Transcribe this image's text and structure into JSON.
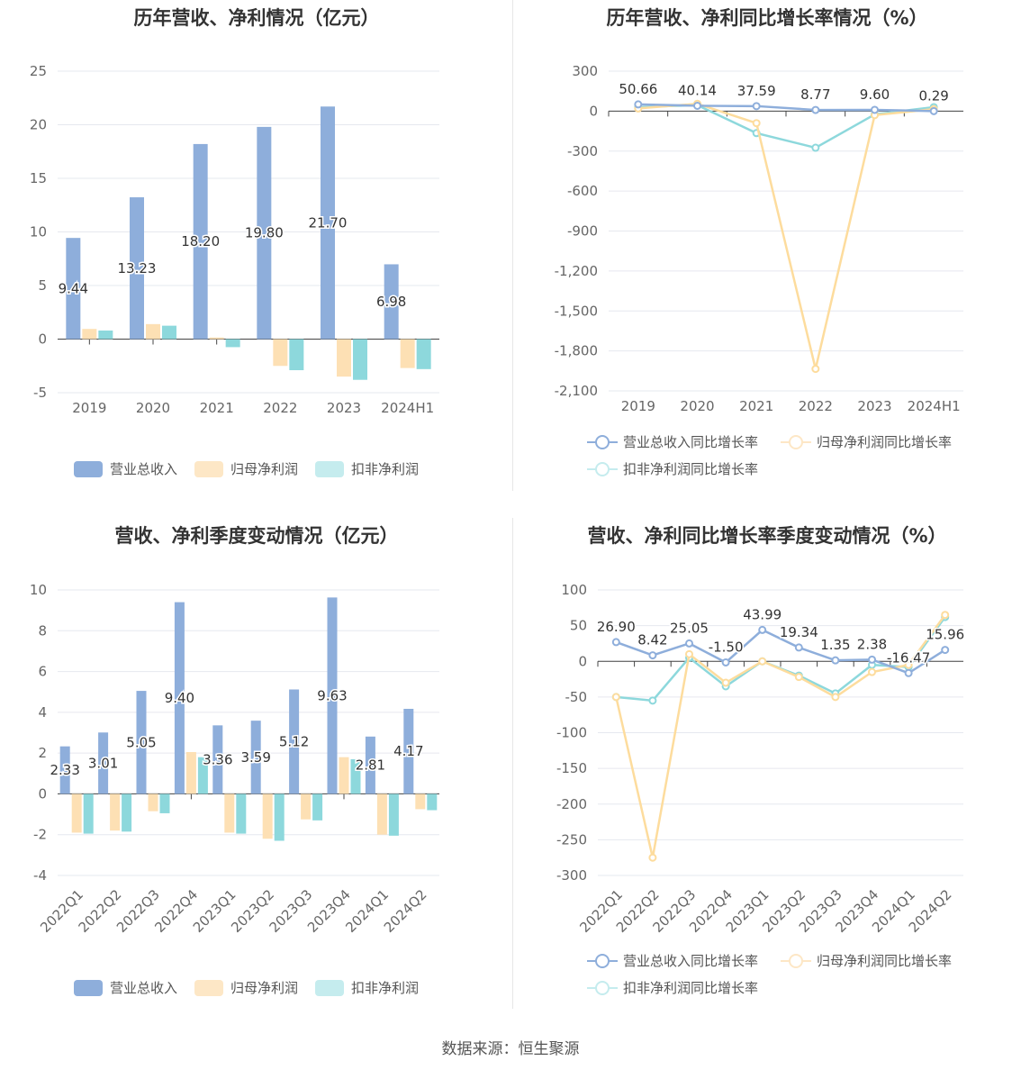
{
  "source": "数据来源：恒生聚源",
  "colors": {
    "revenue": "#8eaedb",
    "netprofit": "#fde0b4",
    "deducted": "#8dd8dc",
    "revenue_line": "#8eaedb",
    "netprofit_line": "#fddc9d",
    "deducted_line": "#8dd8dc",
    "legend_deducted": "#c5ecee",
    "legend_netprofit": "#fde7c6"
  },
  "chart_data": [
    {
      "type": "bar",
      "title": "历年营收、净利情况（亿元）",
      "categories": [
        "2019",
        "2020",
        "2021",
        "2022",
        "2023",
        "2024H1"
      ],
      "ylim": [
        -5,
        25
      ],
      "yticks": [
        -5,
        0,
        5,
        10,
        15,
        20,
        25
      ],
      "series": [
        {
          "name": "营业总收入",
          "values": [
            9.44,
            13.23,
            18.2,
            19.8,
            21.7,
            6.98
          ],
          "labels": [
            "9.44",
            "13.23",
            "18.20",
            "19.80",
            "21.70",
            "6.98"
          ]
        },
        {
          "name": "归母净利润",
          "values": [
            0.95,
            1.4,
            0.15,
            -2.5,
            -3.5,
            -2.7
          ]
        },
        {
          "name": "扣非净利润",
          "values": [
            0.8,
            1.25,
            -0.75,
            -2.9,
            -3.8,
            -2.8
          ]
        }
      ],
      "legend": "bottom",
      "grid": true
    },
    {
      "type": "line",
      "title": "历年营收、净利同比增长率情况（%）",
      "categories": [
        "2019",
        "2020",
        "2021",
        "2022",
        "2023",
        "2024H1"
      ],
      "ylim": [
        -2100,
        300
      ],
      "yticks": [
        300,
        0,
        -300,
        -600,
        -900,
        -1200,
        -1500,
        -1800,
        -2100
      ],
      "ytick_labels": [
        "300",
        "0",
        "-300",
        "-600",
        "-900",
        "-1,200",
        "-1,500",
        "-1,800",
        "-2,100"
      ],
      "series": [
        {
          "name": "营业总收入同比增长率",
          "values": [
            50.66,
            40.14,
            37.59,
            8.77,
            9.6,
            0.29
          ],
          "labels": [
            "50.66",
            "40.14",
            "37.59",
            "8.77",
            "9.60",
            "0.29"
          ]
        },
        {
          "name": "归母净利润同比增长率",
          "values": [
            20,
            55,
            -90,
            -1935,
            -30,
            15
          ]
        },
        {
          "name": "扣非净利润同比增长率",
          "values": [
            30,
            45,
            -165,
            -275,
            -25,
            30
          ]
        }
      ],
      "legend": "bottom",
      "grid": true
    },
    {
      "type": "bar",
      "title": "营收、净利季度变动情况（亿元）",
      "categories": [
        "2022Q1",
        "2022Q2",
        "2022Q3",
        "2022Q4",
        "2023Q1",
        "2023Q2",
        "2023Q3",
        "2023Q4",
        "2024Q1",
        "2024Q2"
      ],
      "ylim": [
        -4,
        10
      ],
      "yticks": [
        -4,
        -2,
        0,
        2,
        4,
        6,
        8,
        10
      ],
      "series": [
        {
          "name": "营业总收入",
          "values": [
            2.33,
            3.01,
            5.05,
            9.4,
            3.36,
            3.59,
            5.12,
            9.63,
            2.81,
            4.17
          ],
          "labels": [
            "2.33",
            "3.01",
            "5.05",
            "9.40",
            "3.36",
            "3.59",
            "5.12",
            "9.63",
            "2.81",
            "4.17"
          ]
        },
        {
          "name": "归母净利润",
          "values": [
            -1.9,
            -1.8,
            -0.85,
            2.05,
            -1.9,
            -2.2,
            -1.25,
            1.8,
            -2.0,
            -0.75
          ]
        },
        {
          "name": "扣非净利润",
          "values": [
            -1.95,
            -1.85,
            -0.95,
            1.8,
            -1.95,
            -2.3,
            -1.3,
            1.7,
            -2.05,
            -0.8
          ]
        }
      ],
      "legend": "bottom",
      "grid": true
    },
    {
      "type": "line",
      "title": "营收、净利同比增长率季度变动情况（%）",
      "categories": [
        "2022Q1",
        "2022Q2",
        "2022Q3",
        "2022Q4",
        "2023Q1",
        "2023Q2",
        "2023Q3",
        "2023Q4",
        "2024Q1",
        "2024Q2"
      ],
      "ylim": [
        -300,
        100
      ],
      "yticks": [
        100,
        50,
        0,
        -50,
        -100,
        -150,
        -200,
        -250,
        -300
      ],
      "series": [
        {
          "name": "营业总收入同比增长率",
          "values": [
            26.9,
            8.42,
            25.05,
            -1.5,
            43.99,
            19.34,
            1.35,
            2.38,
            -16.47,
            15.96
          ],
          "labels": [
            "26.90",
            "8.42",
            "25.05",
            "-1.50",
            "43.99",
            "19.34",
            "1.35",
            "2.38",
            "-16.47",
            "15.96"
          ]
        },
        {
          "name": "归母净利润同比增长率",
          "values": [
            -50,
            -275,
            10,
            -30,
            0,
            -22,
            -50,
            -15,
            -5,
            65
          ]
        },
        {
          "name": "扣非净利润同比增长率",
          "values": [
            -50,
            -55,
            5,
            -35,
            0,
            -20,
            -45,
            -5,
            -8,
            62
          ]
        }
      ],
      "legend": "bottom",
      "grid": true
    }
  ]
}
